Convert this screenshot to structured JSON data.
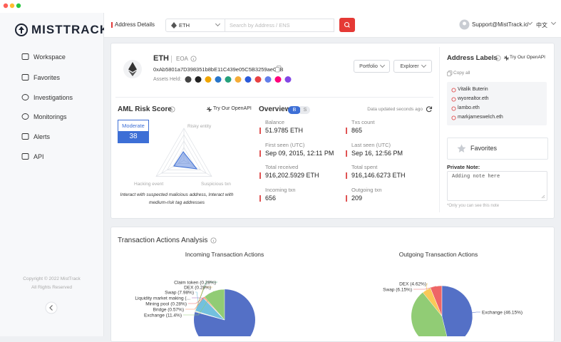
{
  "sidebar": {
    "logo": "MISTTRACK",
    "nav": [
      "Workspace",
      "Favorites",
      "Investigations",
      "Monitorings",
      "Alerts",
      "API"
    ],
    "copyright": "Copyright © 2022 MistTrack",
    "rights": "All Rights Reserved"
  },
  "topbar": {
    "breadcrumb": "Address Details",
    "chain": "ETH",
    "search_placeholder": "Search by Address / ENS",
    "account": "Support@MistTrack.io",
    "language": "中文"
  },
  "address": {
    "chain": "ETH",
    "type": "EOA",
    "address": "0xAb5801a7D398351b8bE11C439e05C5B3259aeC9B",
    "assets_label": "Assets Held:",
    "buttons": [
      "Portfolio",
      "Explorer"
    ]
  },
  "aml": {
    "title": "AML Risk Score",
    "openapi": "Try Our OpenAPI",
    "level": "Moderate",
    "score": 38,
    "axes": [
      "Risky entity",
      "Hacking event",
      "Suspicious txn"
    ],
    "description": "Interact with suspected malicious address, Interact with medium-risk tag addresses"
  },
  "overview": {
    "title": "Overview",
    "badges": [
      "B",
      "S"
    ],
    "updated": "Data updated seconds ago",
    "fields": [
      {
        "label": "Balance",
        "value": "51.9785 ETH"
      },
      {
        "label": "Txs count",
        "value": "865"
      },
      {
        "label": "First seen (UTC)",
        "value": "Sep 09, 2015, 12:11 PM"
      },
      {
        "label": "Last seen (UTC)",
        "value": "Sep 16, 12:56 PM"
      },
      {
        "label": "Total received",
        "value": "916,202.5929 ETH"
      },
      {
        "label": "Total spent",
        "value": "916,146.6273 ETH"
      },
      {
        "label": "Incoming txn",
        "value": "656"
      },
      {
        "label": "Outgoing txn",
        "value": "209"
      }
    ]
  },
  "labels": {
    "title": "Address Labels",
    "openapi": "Try Our OpenAPI",
    "copy": "Copy all",
    "items": [
      "Vitalik Buterin",
      "wyorealtor.eth",
      "lambo.eth",
      "markjameswelch.eth"
    ]
  },
  "favorites": {
    "title": "Favorites",
    "note_label": "Private Note:",
    "placeholder": "Adding note here",
    "hint": "*Only you can see this note"
  },
  "analysis": {
    "title": "Transaction Actions Analysis",
    "pies": [
      {
        "title": "Incoming Transaction Actions",
        "slices": [
          {
            "label": "Claim token (0.28%)",
            "value": 0.28,
            "color": "#3ba272"
          },
          {
            "label": "DEX (0.28%)",
            "value": 0.28,
            "color": "#fac858"
          },
          {
            "label": "Swap (7.98%)",
            "value": 7.98,
            "color": "#73c0de"
          },
          {
            "label": "Liquidity market making (..."
          },
          {
            "label": "Mining pool (0.28%)",
            "value": 0.28,
            "color": "#ee6666"
          },
          {
            "label": "Bridge (0.57%)",
            "value": 0.57,
            "color": "#fc8452"
          },
          {
            "label": "Exchange (11.4%)",
            "value": 11.4,
            "color": "#91cc75"
          }
        ]
      },
      {
        "title": "Outgoing Transaction Actions",
        "slices": [
          {
            "label": "DEX (4.62%)",
            "value": 4.62,
            "color": "#fac858"
          },
          {
            "label": "Swap (6.15%)",
            "value": 6.15,
            "color": "#ee6666"
          },
          {
            "label": "Exchange (46.15%)",
            "value": 46.15,
            "color": "#5470c6"
          }
        ]
      }
    ]
  }
}
